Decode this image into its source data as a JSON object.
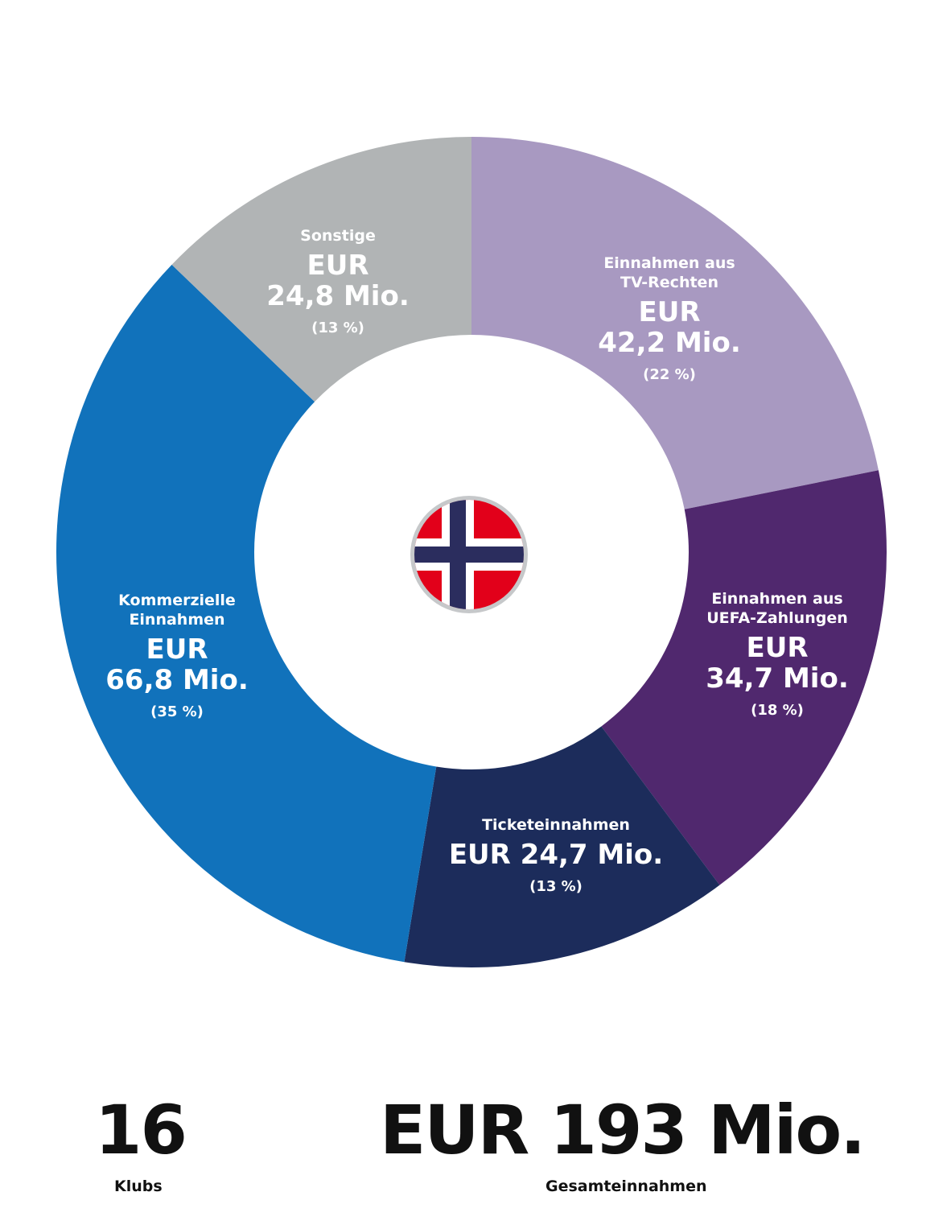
{
  "chart_data": {
    "type": "pie",
    "variant": "donut",
    "unit": "EUR Mio.",
    "center_icon": "norway-flag-icon",
    "segments": [
      {
        "key": "tv",
        "name_lines": [
          "Einnahmen aus",
          "TV-Rechten"
        ],
        "amount_lines": [
          "EUR",
          "42,2 Mio."
        ],
        "percent_label": "(22 %)",
        "value": 42.2,
        "percent": 22,
        "color": "#a899c1"
      },
      {
        "key": "uefa",
        "name_lines": [
          "Einnahmen aus",
          "UEFA-Zahlungen"
        ],
        "amount_lines": [
          "EUR",
          "34,7 Mio."
        ],
        "percent_label": "(18 %)",
        "value": 34.7,
        "percent": 18,
        "color": "#50286e"
      },
      {
        "key": "ticket",
        "name_lines": [
          "Ticketeinnahmen"
        ],
        "amount_lines": [
          "EUR 24,7 Mio."
        ],
        "percent_label": "(13 %)",
        "value": 24.7,
        "percent": 13,
        "color": "#1c2c5b"
      },
      {
        "key": "commercial",
        "name_lines": [
          "Kommerzielle",
          "Einnahmen"
        ],
        "amount_lines": [
          "EUR",
          "66,8 Mio."
        ],
        "percent_label": "(35 %)",
        "value": 66.8,
        "percent": 35,
        "color": "#1172bb"
      },
      {
        "key": "other",
        "name_lines": [
          "Sonstige"
        ],
        "amount_lines": [
          "EUR",
          "24,8 Mio."
        ],
        "percent_label": "(13 %)",
        "value": 24.8,
        "percent": 13,
        "color": "#b1b4b5"
      }
    ]
  },
  "stats": {
    "clubs_value": "16",
    "clubs_label": "Klubs",
    "total_value": "EUR 193 Mio.",
    "total_label": "Gesamteinnahmen"
  },
  "colors": {
    "flag_red": "#e2001a",
    "flag_blue": "#2b2d5e",
    "flag_white": "#ffffff",
    "flag_ring": "#c6c8ca"
  }
}
